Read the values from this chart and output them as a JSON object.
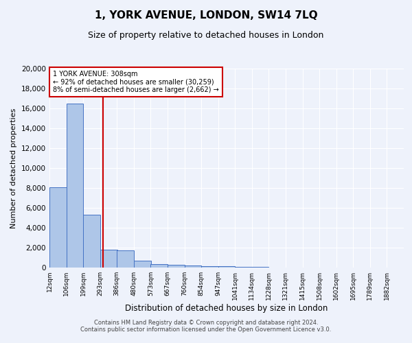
{
  "title": "1, YORK AVENUE, LONDON, SW14 7LQ",
  "subtitle": "Size of property relative to detached houses in London",
  "xlabel": "Distribution of detached houses by size in London",
  "ylabel": "Number of detached properties",
  "footer_line1": "Contains HM Land Registry data © Crown copyright and database right 2024.",
  "footer_line2": "Contains public sector information licensed under the Open Government Licence v3.0.",
  "property_size": 308,
  "property_label": "1 YORK AVENUE: 308sqm",
  "annotation_line2": "← 92% of detached houses are smaller (30,259)",
  "annotation_line3": "8% of semi-detached houses are larger (2,662) →",
  "bar_edges": [
    12,
    106,
    199,
    293,
    386,
    480,
    573,
    667,
    760,
    854,
    947,
    1041,
    1134,
    1228,
    1321,
    1415,
    1508,
    1602,
    1695,
    1789,
    1882
  ],
  "bar_heights": [
    8100,
    16500,
    5300,
    1800,
    1750,
    700,
    350,
    250,
    200,
    150,
    150,
    80,
    50,
    30,
    20,
    15,
    10,
    8,
    5,
    3
  ],
  "bar_color": "#aec6e8",
  "bar_edge_color": "#4472c4",
  "red_line_color": "#cc0000",
  "background_color": "#eef2fb",
  "annotation_box_color": "#ffffff",
  "annotation_border_color": "#cc0000",
  "ylim": [
    0,
    20000
  ],
  "yticks": [
    0,
    2000,
    4000,
    6000,
    8000,
    10000,
    12000,
    14000,
    16000,
    18000,
    20000
  ]
}
